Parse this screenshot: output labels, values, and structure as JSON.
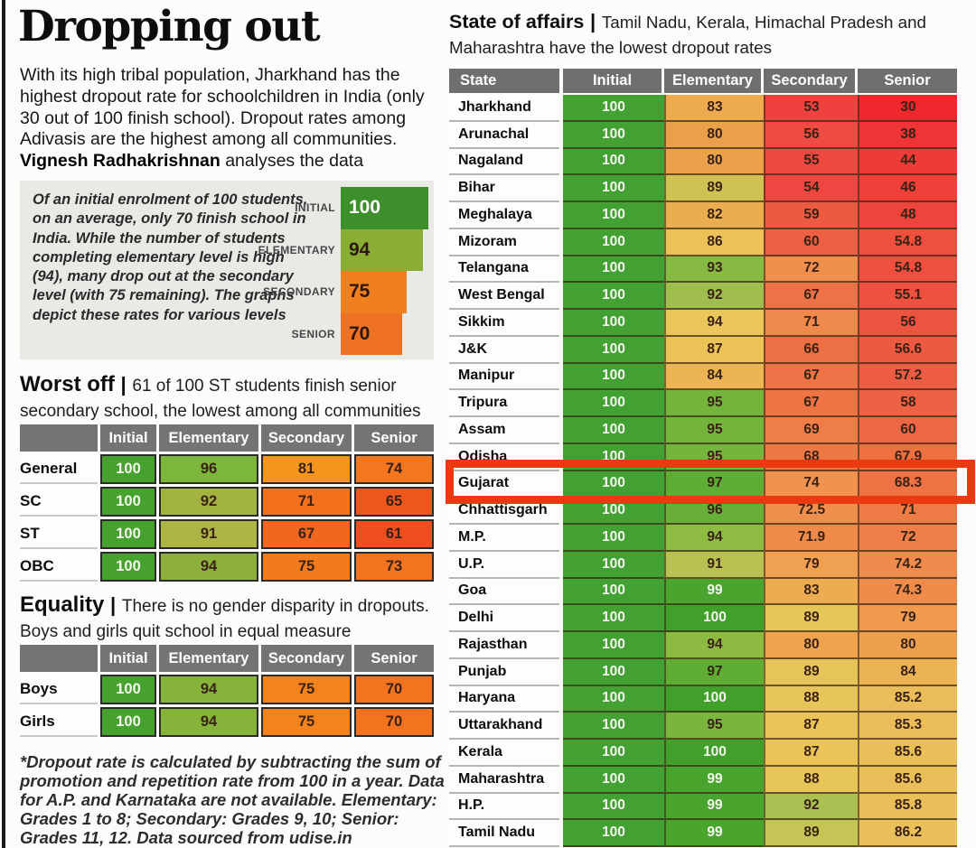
{
  "title": "Dropping out",
  "intro": {
    "text": "With its high tribal population, Jharkhand has the highest dropout rate for schoolchildren in India (only 30 out of 100 finish school). Dropout rates among Adivasis are the highest among all communities.",
    "author": "Vignesh Radhakrishnan",
    "tail": " analyses the data"
  },
  "summary": {
    "text": "Of an initial enrolment of 100 students, on an average, only 70 finish school in India. While the number of students completing elementary level is high (94), many drop out at the secondary level (with 75 remaining). The graphs depict these rates for various levels"
  },
  "footnote": "*Dropout rate is calculated by subtracting the sum of promotion and repetition rate from 100 in a year. Data for A.P. and Karnataka are not available. Elementary: Grades 1 to 8; Secondary: Grades 9, 10; Senior: Grades 11, 12. Data sourced from udise.in",
  "colors": {
    "header_gray": "#6e6f71",
    "initial_green": "#43a033",
    "highlight_box": "#ea3a12",
    "info_box_bg": "#e9e9e6",
    "cell_dark_text": "#3a2213",
    "cell_light_text": "#f4f7ee"
  },
  "chart_data": [
    {
      "id": "enrolment-funnel",
      "type": "bar",
      "orientation": "horizontal",
      "categories": [
        "INITIAL",
        "ELEMENTARY",
        "SECONDARY",
        "SENIOR"
      ],
      "values": [
        100,
        94,
        75,
        70
      ],
      "bar_colors": [
        "#3c8f2b",
        "#8aae33",
        "#f0801e",
        "#ee7124"
      ],
      "xlim": [
        0,
        100
      ]
    },
    {
      "id": "worst-off",
      "type": "table",
      "heading": "Worst off",
      "pipe": "|",
      "subheading": "61 of 100 ST students finish senior secondary school, the lowest among all communities",
      "columns": [
        "",
        "Initial",
        "Elementary",
        "Secondary",
        "Senior"
      ],
      "rows": [
        {
          "label": "General",
          "values": [
            100,
            96,
            81,
            74
          ],
          "colors": [
            "#46a12e",
            "#7cb63a",
            "#f6951c",
            "#f4761f"
          ]
        },
        {
          "label": "SC",
          "values": [
            100,
            92,
            71,
            65
          ],
          "colors": [
            "#46a12e",
            "#a2b340",
            "#f3711d",
            "#f0571f"
          ]
        },
        {
          "label": "ST",
          "values": [
            100,
            91,
            67,
            61
          ],
          "colors": [
            "#46a12e",
            "#adb644",
            "#f2661e",
            "#ef4e1f"
          ]
        },
        {
          "label": "OBC",
          "values": [
            100,
            94,
            75,
            73
          ],
          "colors": [
            "#46a12e",
            "#8db03c",
            "#f47a1e",
            "#f4731f"
          ]
        }
      ]
    },
    {
      "id": "equality",
      "type": "table",
      "heading": "Equality",
      "pipe": "|",
      "subheading": "There is no gender disparity in dropouts. Boys and girls quit school in equal measure",
      "columns": [
        "",
        "Initial",
        "Elementary",
        "Secondary",
        "Senior"
      ],
      "rows": [
        {
          "label": "Boys",
          "values": [
            100,
            94,
            75,
            70
          ],
          "colors": [
            "#46a12e",
            "#86b43b",
            "#f5831d",
            "#f4731f"
          ]
        },
        {
          "label": "Girls",
          "values": [
            100,
            94,
            75,
            70
          ],
          "colors": [
            "#46a12e",
            "#86b43b",
            "#f5831d",
            "#f4731f"
          ]
        }
      ]
    },
    {
      "id": "states",
      "type": "table",
      "heading": "State of affairs",
      "pipe": "|",
      "subheading": "Tamil Nadu, Kerala, Himachal Pradesh and Maharashtra have the lowest dropout rates",
      "columns": [
        "State",
        "Initial",
        "Elementary",
        "Secondary",
        "Senior"
      ],
      "highlighted_row": "Gujarat",
      "rows": [
        {
          "label": "Jharkhand",
          "values": [
            100,
            83,
            53,
            30
          ],
          "colors": [
            "#43a033",
            "#edaa4e",
            "#ee4140",
            "#ef282e"
          ]
        },
        {
          "label": "Arunachal",
          "values": [
            100,
            80,
            56,
            38
          ],
          "colors": [
            "#43a033",
            "#ec9f4a",
            "#ee4b42",
            "#ee3434"
          ]
        },
        {
          "label": "Nagaland",
          "values": [
            100,
            80,
            55,
            44
          ],
          "colors": [
            "#43a033",
            "#eca14b",
            "#ee4941",
            "#ee3b37"
          ]
        },
        {
          "label": "Bihar",
          "values": [
            100,
            89,
            54,
            46
          ],
          "colors": [
            "#43a033",
            "#d0c153",
            "#ee4640",
            "#ee3f39"
          ]
        },
        {
          "label": "Meghalaya",
          "values": [
            100,
            82,
            59,
            48
          ],
          "colors": [
            "#43a033",
            "#ebae4e",
            "#ed5a42",
            "#ee443b"
          ]
        },
        {
          "label": "Mizoram",
          "values": [
            100,
            86,
            60,
            54.8
          ],
          "colors": [
            "#43a033",
            "#ecc157",
            "#ed5f43",
            "#ee4f3e"
          ]
        },
        {
          "label": "Telangana",
          "values": [
            100,
            93,
            72,
            54.8
          ],
          "colors": [
            "#43a033",
            "#86ba42",
            "#ef8f4e",
            "#ee4f3e"
          ]
        },
        {
          "label": "West Bengal",
          "values": [
            100,
            92,
            67,
            55.1
          ],
          "colors": [
            "#43a033",
            "#9fbe4e",
            "#ee7247",
            "#ee513f"
          ]
        },
        {
          "label": "Sikkim",
          "values": [
            100,
            94,
            71,
            56
          ],
          "colors": [
            "#43a033",
            "#ebc65b",
            "#ef8a4c",
            "#ed5440"
          ]
        },
        {
          "label": "J&K",
          "values": [
            100,
            87,
            66,
            56.6
          ],
          "colors": [
            "#43a033",
            "#ecc357",
            "#ed7044",
            "#ed5a42"
          ]
        },
        {
          "label": "Manipur",
          "values": [
            100,
            84,
            67,
            57.2
          ],
          "colors": [
            "#43a033",
            "#ecb452",
            "#ee7346",
            "#ed5d43"
          ]
        },
        {
          "label": "Tripura",
          "values": [
            100,
            95,
            67,
            58
          ],
          "colors": [
            "#43a033",
            "#72b43c",
            "#ee7446",
            "#ed6144"
          ]
        },
        {
          "label": "Assam",
          "values": [
            100,
            95,
            69,
            60
          ],
          "colors": [
            "#43a033",
            "#73b43c",
            "#ee7d48",
            "#ed6645"
          ]
        },
        {
          "label": "Odisha",
          "values": [
            100,
            95,
            68,
            67.9
          ],
          "colors": [
            "#43a033",
            "#74b53d",
            "#ed7947",
            "#ee7041"
          ]
        },
        {
          "label": "Gujarat",
          "values": [
            100,
            97,
            74,
            68.3
          ],
          "colors": [
            "#43a033",
            "#5ead34",
            "#f09350",
            "#ee7243"
          ]
        },
        {
          "label": "Chhattisgarh",
          "values": [
            100,
            96,
            72.5,
            71
          ],
          "colors": [
            "#43a033",
            "#68b038",
            "#ef8f4e",
            "#ee7a45"
          ]
        },
        {
          "label": "M.P.",
          "values": [
            100,
            94,
            71.9,
            72
          ],
          "colors": [
            "#43a033",
            "#8ebc43",
            "#ee8a4a",
            "#ee7f48"
          ]
        },
        {
          "label": "U.P.",
          "values": [
            100,
            91,
            79,
            74.2
          ],
          "colors": [
            "#43a033",
            "#b8c151",
            "#f0a051",
            "#ef8c4d"
          ]
        },
        {
          "label": "Goa",
          "values": [
            100,
            99,
            83,
            74.3
          ],
          "colors": [
            "#43a033",
            "#49a52d",
            "#eeac50",
            "#ef8c4c"
          ]
        },
        {
          "label": "Delhi",
          "values": [
            100,
            100,
            89,
            79
          ],
          "colors": [
            "#43a033",
            "#40a02a",
            "#e4c65b",
            "#f09a50"
          ]
        },
        {
          "label": "Rajasthan",
          "values": [
            100,
            94,
            80,
            80
          ],
          "colors": [
            "#43a033",
            "#8dbb42",
            "#eea34e",
            "#efa04f"
          ]
        },
        {
          "label": "Punjab",
          "values": [
            100,
            97,
            89,
            84
          ],
          "colors": [
            "#43a033",
            "#60ad35",
            "#e5c45a",
            "#ecb355"
          ]
        },
        {
          "label": "Haryana",
          "values": [
            100,
            100,
            88,
            85.2
          ],
          "colors": [
            "#43a033",
            "#40a02a",
            "#e8c558",
            "#ebbd59"
          ]
        },
        {
          "label": "Uttarakhand",
          "values": [
            100,
            95,
            87,
            85.3
          ],
          "colors": [
            "#43a033",
            "#7ab63e",
            "#eac457",
            "#ebbd58"
          ]
        },
        {
          "label": "Kerala",
          "values": [
            100,
            100,
            87,
            85.6
          ],
          "colors": [
            "#43a033",
            "#41a02b",
            "#eac457",
            "#eabe59"
          ]
        },
        {
          "label": "Maharashtra",
          "values": [
            100,
            99,
            88,
            85.6
          ],
          "colors": [
            "#43a033",
            "#48a42c",
            "#e8c558",
            "#eabe59"
          ]
        },
        {
          "label": "H.P.",
          "values": [
            100,
            99,
            92,
            85.8
          ],
          "colors": [
            "#43a033",
            "#49a52d",
            "#aac052",
            "#eabf59"
          ]
        },
        {
          "label": "Tamil Nadu",
          "values": [
            100,
            99,
            89,
            86.2
          ],
          "colors": [
            "#43a033",
            "#4aa52d",
            "#c5c556",
            "#e9c05a"
          ]
        }
      ]
    }
  ]
}
